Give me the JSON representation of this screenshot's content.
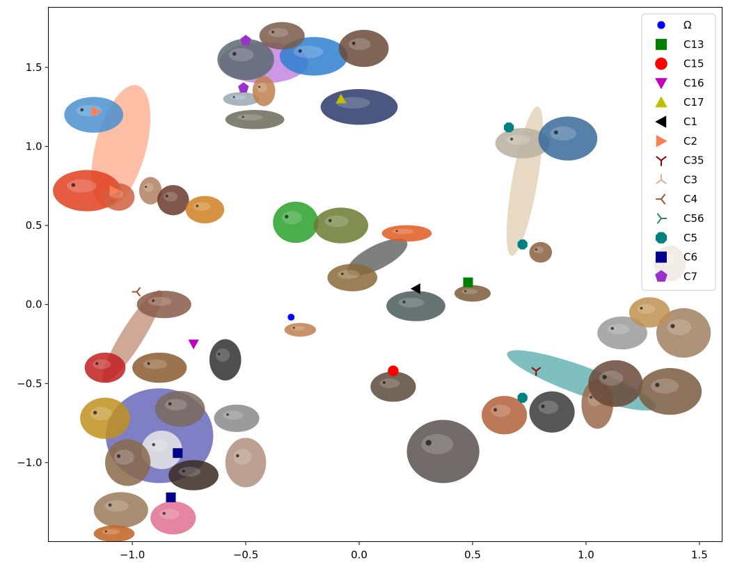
{
  "chart_data": {
    "type": "scatter",
    "title": "",
    "xlabel": "",
    "ylabel": "",
    "xlim": [
      -1.37,
      1.6
    ],
    "ylim": [
      -1.5,
      1.88
    ],
    "grid": false,
    "legend_placement": "top-right",
    "x_ticks": [
      {
        "value": -1.0,
        "label": "−1.0"
      },
      {
        "value": -0.5,
        "label": "−0.5"
      },
      {
        "value": 0.0,
        "label": "0.0"
      },
      {
        "value": 0.5,
        "label": "0.5"
      },
      {
        "value": 1.0,
        "label": "1.0"
      },
      {
        "value": 1.5,
        "label": "1.5"
      }
    ],
    "y_ticks": [
      {
        "value": 1.5,
        "label": "1.5"
      },
      {
        "value": 1.0,
        "label": "1.0"
      },
      {
        "value": 0.5,
        "label": "0.5"
      },
      {
        "value": 0.0,
        "label": "0.0"
      },
      {
        "value": -0.5,
        "label": "−0.5"
      },
      {
        "value": -1.0,
        "label": "−1.0"
      }
    ],
    "legend": [
      {
        "label": "Ω",
        "marker": "dot",
        "color": "#0000ff"
      },
      {
        "label": "C13",
        "marker": "square",
        "color": "#008000"
      },
      {
        "label": "C15",
        "marker": "circle",
        "color": "#ff0000"
      },
      {
        "label": "C16",
        "marker": "tri-down",
        "color": "#bf00bf"
      },
      {
        "label": "C17",
        "marker": "tri-up",
        "color": "#bfbf00"
      },
      {
        "label": "C1",
        "marker": "tri-left",
        "color": "#000000"
      },
      {
        "label": "C2",
        "marker": "tri-right",
        "color": "#ff7f50"
      },
      {
        "label": "C35",
        "marker": "y-down",
        "color": "#8b0000"
      },
      {
        "label": "C3",
        "marker": "y-up",
        "color": "#d2b48c"
      },
      {
        "label": "C4",
        "marker": "y-left",
        "color": "#a0522d"
      },
      {
        "label": "C56",
        "marker": "y-right",
        "color": "#2e8b57"
      },
      {
        "label": "C5",
        "marker": "octagon",
        "color": "#008080"
      },
      {
        "label": "C6",
        "marker": "square",
        "color": "#00008b"
      },
      {
        "label": "C7",
        "marker": "pentagon",
        "color": "#9932cc"
      }
    ],
    "clusters": [
      {
        "id": "C7",
        "color": "#9932cc",
        "center": [
          -0.42,
          1.53
        ],
        "rx": 0.28,
        "ry": 0.13,
        "angle": 0
      },
      {
        "id": "C2",
        "color": "#ff7f50",
        "center": [
          -1.05,
          1.0
        ],
        "rx": 0.4,
        "ry": 0.16,
        "angle": -75
      },
      {
        "id": "C3",
        "color": "#d2b48c",
        "center": [
          0.73,
          0.78
        ],
        "rx": 0.48,
        "ry": 0.08,
        "angle": -80
      },
      {
        "id": "C1",
        "color": "#000000",
        "center": [
          0.08,
          0.3
        ],
        "rx": 0.21,
        "ry": 0.075,
        "angle": -27
      },
      {
        "id": "C4",
        "color": "#a0522d",
        "center": [
          -1.0,
          -0.2
        ],
        "rx": 0.34,
        "ry": 0.07,
        "angle": -58
      },
      {
        "id": "C6",
        "color": "#00008b",
        "center": [
          -0.88,
          -0.83
        ],
        "rx": 0.34,
        "ry": 0.3,
        "angle": 0
      },
      {
        "id": "C5",
        "color": "#008080",
        "center": [
          0.98,
          -0.48
        ],
        "rx": 0.5,
        "ry": 0.09,
        "angle": 20
      }
    ],
    "points": [
      {
        "series": "C7",
        "x": -0.5,
        "y": 1.67
      },
      {
        "series": "C7",
        "x": -0.51,
        "y": 1.37
      },
      {
        "series": "C17",
        "x": -0.08,
        "y": 1.3
      },
      {
        "series": "C2",
        "x": -1.16,
        "y": 1.22
      },
      {
        "series": "C2",
        "x": -1.08,
        "y": 0.72
      },
      {
        "series": "C5",
        "x": 0.66,
        "y": 1.12
      },
      {
        "series": "C5",
        "x": 0.72,
        "y": 0.38
      },
      {
        "series": "C1",
        "x": 0.25,
        "y": 0.1
      },
      {
        "series": "C13",
        "x": 0.48,
        "y": 0.14
      },
      {
        "series": "Ω",
        "x": -0.3,
        "y": -0.08
      },
      {
        "series": "C16",
        "x": -0.73,
        "y": -0.25
      },
      {
        "series": "C15",
        "x": 0.15,
        "y": -0.42
      },
      {
        "series": "C35",
        "x": 0.78,
        "y": -0.42
      },
      {
        "series": "C5",
        "x": 0.72,
        "y": -0.59
      },
      {
        "series": "C6",
        "x": -0.8,
        "y": -0.94
      },
      {
        "series": "C6",
        "x": -0.83,
        "y": -1.22
      },
      {
        "series": "C4",
        "x": -0.98,
        "y": 0.08
      }
    ],
    "images": [
      {
        "name": "shark-image",
        "x": -0.5,
        "y": 1.55,
        "w": 0.25,
        "h": 0.3,
        "color": "#5a6a70"
      },
      {
        "name": "tuna-image",
        "x": -0.2,
        "y": 1.57,
        "w": 0.3,
        "h": 0.28,
        "color": "#2e7fd0"
      },
      {
        "name": "turtle-image",
        "x": 0.02,
        "y": 1.62,
        "w": 0.22,
        "h": 0.27,
        "color": "#6a4a3a"
      },
      {
        "name": "catfish-image",
        "x": -0.34,
        "y": 1.7,
        "w": 0.2,
        "h": 0.2,
        "color": "#7a5a4a"
      },
      {
        "name": "fish-image",
        "x": -0.52,
        "y": 1.3,
        "w": 0.16,
        "h": 0.1,
        "color": "#9aa8b0"
      },
      {
        "name": "seahorse-image",
        "x": -0.42,
        "y": 1.35,
        "w": 0.1,
        "h": 0.22,
        "color": "#c08050"
      },
      {
        "name": "carp-image",
        "x": -0.46,
        "y": 1.17,
        "w": 0.26,
        "h": 0.14,
        "color": "#6a6a5a"
      },
      {
        "name": "seasnake-image",
        "x": 0.0,
        "y": 1.25,
        "w": 0.34,
        "h": 0.26,
        "color": "#2a3a6a"
      },
      {
        "name": "jellyfish-image",
        "x": -1.17,
        "y": 1.2,
        "w": 0.26,
        "h": 0.26,
        "color": "#4a90d0"
      },
      {
        "name": "lobster-image",
        "x": -1.2,
        "y": 0.72,
        "w": 0.3,
        "h": 0.3,
        "color": "#e04020"
      },
      {
        "name": "shrimp-image",
        "x": -1.06,
        "y": 0.68,
        "w": 0.14,
        "h": 0.2,
        "color": "#d06040"
      },
      {
        "name": "shell-image",
        "x": -0.92,
        "y": 0.72,
        "w": 0.1,
        "h": 0.2,
        "color": "#b08060"
      },
      {
        "name": "octopus-image",
        "x": -0.82,
        "y": 0.66,
        "w": 0.14,
        "h": 0.22,
        "color": "#6a3a2a"
      },
      {
        "name": "crab-image",
        "x": -0.68,
        "y": 0.6,
        "w": 0.17,
        "h": 0.2,
        "color": "#d08020"
      },
      {
        "name": "seal-image",
        "x": 0.72,
        "y": 1.02,
        "w": 0.24,
        "h": 0.22,
        "color": "#b8b0a0"
      },
      {
        "name": "dolphin-image",
        "x": 0.92,
        "y": 1.05,
        "w": 0.26,
        "h": 0.32,
        "color": "#3a6a9a"
      },
      {
        "name": "sealion-image",
        "x": 0.8,
        "y": 0.33,
        "w": 0.1,
        "h": 0.15,
        "color": "#8a6040"
      },
      {
        "name": "greensnake-image",
        "x": -0.28,
        "y": 0.52,
        "w": 0.2,
        "h": 0.3,
        "color": "#2aa02a"
      },
      {
        "name": "frog-image",
        "x": -0.08,
        "y": 0.5,
        "w": 0.24,
        "h": 0.26,
        "color": "#6a7a30"
      },
      {
        "name": "newt-image",
        "x": 0.21,
        "y": 0.45,
        "w": 0.22,
        "h": 0.12,
        "color": "#e05a20"
      },
      {
        "name": "toad-image",
        "x": -0.03,
        "y": 0.17,
        "w": 0.22,
        "h": 0.2,
        "color": "#8a6a3a"
      },
      {
        "name": "lizard-image",
        "x": 0.25,
        "y": -0.01,
        "w": 0.26,
        "h": 0.22,
        "color": "#4a5a5a"
      },
      {
        "name": "platypus-image",
        "x": 0.5,
        "y": 0.07,
        "w": 0.16,
        "h": 0.12,
        "color": "#7a5a3a"
      },
      {
        "name": "scorpion-image",
        "x": -0.26,
        "y": -0.16,
        "w": 0.14,
        "h": 0.1,
        "color": "#c08050"
      },
      {
        "name": "tortoise-image",
        "x": 0.15,
        "y": -0.52,
        "w": 0.2,
        "h": 0.22,
        "color": "#5a4a3a"
      },
      {
        "name": "bat-image",
        "x": 0.37,
        "y": -0.93,
        "w": 0.32,
        "h": 0.46,
        "color": "#5a5050"
      },
      {
        "name": "squirrel-image",
        "x": 0.64,
        "y": -0.7,
        "w": 0.2,
        "h": 0.28,
        "color": "#b0603a"
      },
      {
        "name": "gorilla-image",
        "x": 0.85,
        "y": -0.68,
        "w": 0.2,
        "h": 0.3,
        "color": "#3a3a3a"
      },
      {
        "name": "kangaroo-image",
        "x": 1.05,
        "y": -0.63,
        "w": 0.14,
        "h": 0.36,
        "color": "#9a6a4a"
      },
      {
        "name": "beaver-image",
        "x": 1.13,
        "y": -0.5,
        "w": 0.24,
        "h": 0.34,
        "color": "#6a4a3a"
      },
      {
        "name": "opossum-image",
        "x": 1.16,
        "y": -0.18,
        "w": 0.22,
        "h": 0.24,
        "color": "#9a9a9a"
      },
      {
        "name": "lynx-image",
        "x": 1.43,
        "y": -0.18,
        "w": 0.24,
        "h": 0.36,
        "color": "#a08060"
      },
      {
        "name": "deer-image",
        "x": 1.37,
        "y": -0.55,
        "w": 0.28,
        "h": 0.34,
        "color": "#7a5a40"
      },
      {
        "name": "weasel-image",
        "x": 1.37,
        "y": 0.26,
        "w": 0.14,
        "h": 0.26,
        "color": "#9a6a4a"
      },
      {
        "name": "lion-image",
        "x": 1.28,
        "y": -0.05,
        "w": 0.18,
        "h": 0.22,
        "color": "#c09050"
      },
      {
        "name": "worm-image",
        "x": -0.86,
        "y": 0.0,
        "w": 0.24,
        "h": 0.2,
        "color": "#8a5a4a"
      },
      {
        "name": "penguin-image",
        "x": -0.59,
        "y": -0.35,
        "w": 0.14,
        "h": 0.3,
        "color": "#303030"
      },
      {
        "name": "ladybug-image",
        "x": -1.12,
        "y": -0.4,
        "w": 0.18,
        "h": 0.22,
        "color": "#c02020"
      },
      {
        "name": "flea-image",
        "x": -0.88,
        "y": -0.4,
        "w": 0.24,
        "h": 0.22,
        "color": "#8a5a30"
      },
      {
        "name": "wasp-image",
        "x": -1.12,
        "y": -0.72,
        "w": 0.22,
        "h": 0.3,
        "color": "#c09020"
      },
      {
        "name": "kiwi-image",
        "x": -0.79,
        "y": -0.66,
        "w": 0.22,
        "h": 0.26,
        "color": "#7a6a5a"
      },
      {
        "name": "emu-image",
        "x": -0.54,
        "y": -0.72,
        "w": 0.2,
        "h": 0.2,
        "color": "#8a8a8a"
      },
      {
        "name": "swan-image",
        "x": -0.87,
        "y": -0.92,
        "w": 0.18,
        "h": 0.28,
        "color": "#e8e8e8"
      },
      {
        "name": "vulture-image",
        "x": -0.73,
        "y": -1.08,
        "w": 0.22,
        "h": 0.22,
        "color": "#3a2a20"
      },
      {
        "name": "ostrich-image",
        "x": -0.5,
        "y": -1.0,
        "w": 0.18,
        "h": 0.36,
        "color": "#b09080"
      },
      {
        "name": "hawk-image",
        "x": -1.02,
        "y": -1.0,
        "w": 0.2,
        "h": 0.34,
        "color": "#8a6a4a"
      },
      {
        "name": "sparrow-image",
        "x": -1.05,
        "y": -1.3,
        "w": 0.24,
        "h": 0.26,
        "color": "#9a7a5a"
      },
      {
        "name": "flamingo-image",
        "x": -0.82,
        "y": -1.35,
        "w": 0.2,
        "h": 0.24,
        "color": "#e07090"
      },
      {
        "name": "rooster-image",
        "x": -1.08,
        "y": -1.45,
        "w": 0.18,
        "h": 0.12,
        "color": "#c06020"
      }
    ]
  }
}
